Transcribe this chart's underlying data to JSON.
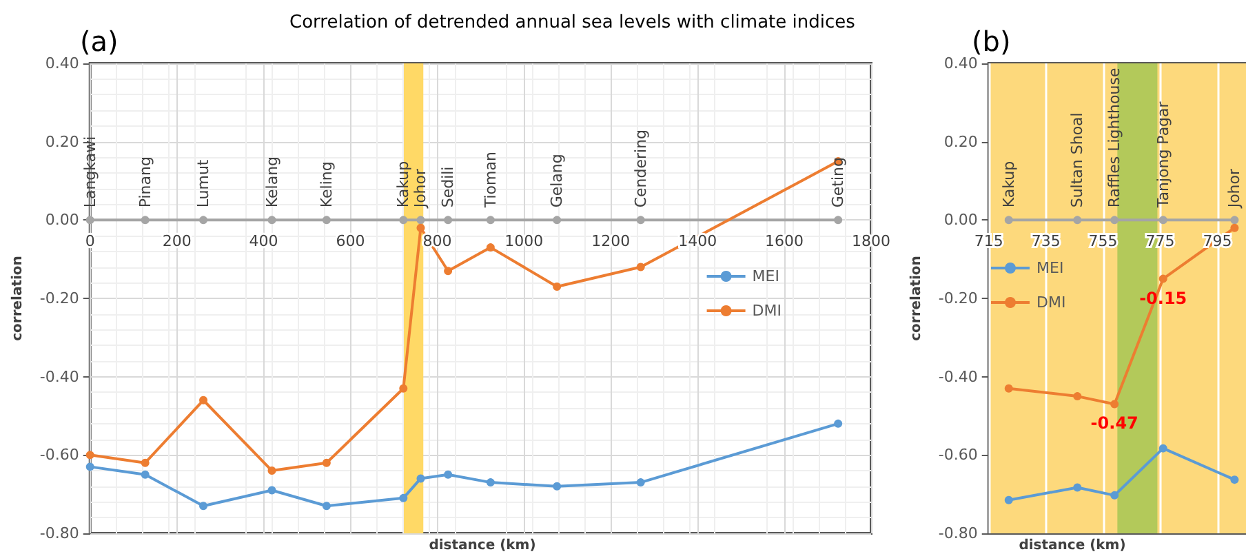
{
  "chart_data": [
    {
      "type": "line",
      "title": "(a)",
      "subtitle": "Correlation of detrended annual sea levels with climate indices",
      "xlabel": "distance (km)",
      "ylabel": "correlation",
      "xlim": [
        0,
        1800
      ],
      "xticks": [
        0,
        200,
        400,
        600,
        800,
        1000,
        1200,
        1400,
        1600,
        1800
      ],
      "ylim": [
        -0.8,
        0.4
      ],
      "yticks": [
        {
          "value": -0.8,
          "label": "-0.80"
        },
        {
          "value": -0.6,
          "label": "-0.60"
        },
        {
          "value": -0.4,
          "label": "-0.40"
        },
        {
          "value": -0.2,
          "label": "-0.20"
        },
        {
          "value": 0,
          "label": "0.00"
        },
        {
          "value": 0.2,
          "label": "0.20"
        },
        {
          "value": 0.4,
          "label": "0.40"
        }
      ],
      "grid": true,
      "legend": "right",
      "marker": "circle",
      "bands": [
        {
          "axis": "x",
          "from": 723,
          "to": 768,
          "color": "#ffd966"
        }
      ],
      "series": [
        {
          "color": "#a5a5a5",
          "x": [
            0,
            127,
            261,
            419,
            545,
            722,
            762,
            825,
            923,
            1076,
            1269,
            1724
          ],
          "values": [
            0,
            0,
            0,
            0,
            0,
            0,
            0,
            0,
            0,
            0,
            0,
            0
          ],
          "value_labels": [
            "Langkawi",
            "Pinang",
            "Lumut",
            "Kelang",
            "Keling",
            "Kakup",
            "Johor",
            "Sedili",
            "Tioman",
            "Gelang",
            "Cendering",
            "Geting"
          ]
        },
        {
          "name": "MEI",
          "color": "#5b9bd5",
          "x": [
            0,
            127,
            261,
            419,
            545,
            722,
            762,
            825,
            923,
            1076,
            1269,
            1724
          ],
          "values": [
            -0.63,
            -0.65,
            -0.73,
            -0.69,
            -0.73,
            -0.71,
            -0.66,
            -0.65,
            -0.67,
            -0.68,
            -0.67,
            -0.52
          ]
        },
        {
          "name": "DMI",
          "color": "#ed7d31",
          "x": [
            0,
            127,
            261,
            419,
            545,
            722,
            762,
            825,
            923,
            1076,
            1269,
            1724
          ],
          "values": [
            -0.6,
            -0.62,
            -0.46,
            -0.64,
            -0.62,
            -0.43,
            -0.02,
            -0.13,
            -0.07,
            -0.17,
            -0.12,
            0.15
          ]
        }
      ]
    },
    {
      "type": "line",
      "title": "(b)",
      "xlabel": "distance (km)",
      "ylabel": "correlation",
      "xlim": [
        715,
        805
      ],
      "xticks": [
        715,
        735,
        755,
        775,
        795
      ],
      "ylim": [
        -0.8,
        0.4
      ],
      "yticks": [
        {
          "value": -0.8,
          "label": "-0.80"
        },
        {
          "value": -0.6,
          "label": "-0.60"
        },
        {
          "value": -0.4,
          "label": "-0.40"
        },
        {
          "value": -0.2,
          "label": "-0.20"
        },
        {
          "value": 0,
          "label": "0.00"
        },
        {
          "value": 0.2,
          "label": "0.20"
        },
        {
          "value": 0.4,
          "label": "0.40"
        }
      ],
      "grid": "x",
      "legend": "top left",
      "marker": "circle",
      "bands": [
        {
          "axis": "x",
          "from": 715,
          "to": 805,
          "color": "#fdd97c"
        },
        {
          "axis": "x",
          "from": 760,
          "to": 774,
          "color": "#b3c95a"
        }
      ],
      "series": [
        {
          "color": "#a5a5a5",
          "x": [
            722,
            746,
            759,
            776,
            801
          ],
          "values": [
            0,
            0,
            0,
            0,
            0
          ],
          "value_labels": [
            "Kakup",
            "Sultan Shoal",
            "Raffles Lighthouse",
            "Tanjong Pagar",
            "Johor"
          ]
        },
        {
          "name": "MEI",
          "color": "#5b9bd5",
          "x": [
            722,
            746,
            759,
            776,
            801
          ],
          "values": [
            -0.715,
            -0.683,
            -0.703,
            -0.583,
            -0.663
          ]
        },
        {
          "name": "DMI",
          "color": "#ed7d31",
          "x": [
            722,
            746,
            759,
            776,
            801
          ],
          "values": [
            -0.43,
            -0.45,
            -0.47,
            -0.15,
            -0.02
          ],
          "value_labels": [
            null,
            null,
            "-0.47",
            "-0.15",
            null
          ]
        }
      ]
    }
  ]
}
